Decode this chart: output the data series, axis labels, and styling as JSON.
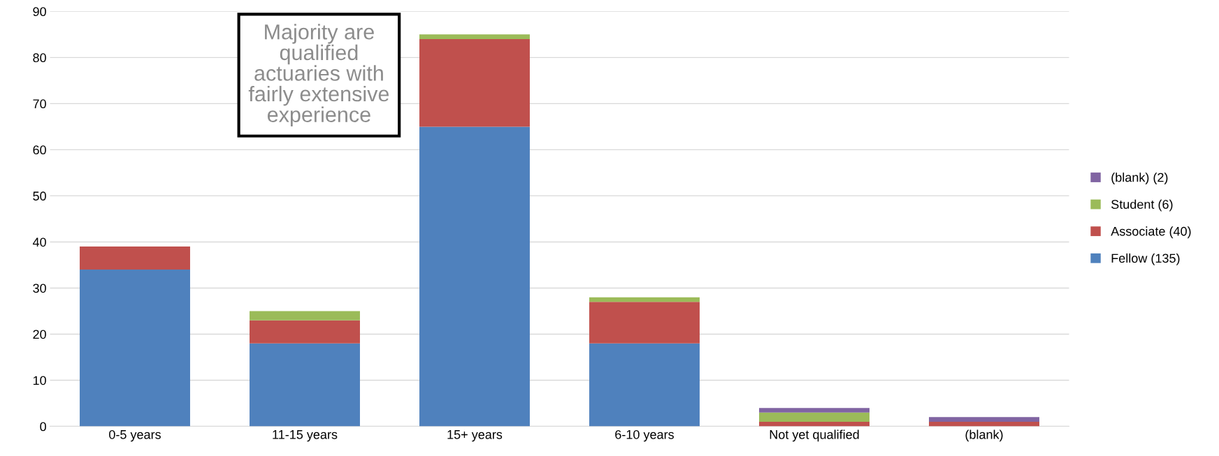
{
  "chart_data": {
    "type": "bar",
    "stacked": true,
    "categories": [
      "0-5 years",
      "11-15 years",
      "15+ years",
      "6-10 years",
      "Not yet qualified",
      "(blank)"
    ],
    "series": [
      {
        "name": "Fellow (135)",
        "color": "#4f81bd",
        "values": [
          34,
          18,
          65,
          18,
          0,
          0
        ]
      },
      {
        "name": "Associate (40)",
        "color": "#c0504d",
        "values": [
          5,
          5,
          19,
          9,
          1,
          1
        ]
      },
      {
        "name": "Student (6)",
        "color": "#9bbb59",
        "values": [
          0,
          2,
          1,
          1,
          2,
          0
        ]
      },
      {
        "name": "(blank) (2)",
        "color": "#8064a2",
        "values": [
          0,
          0,
          0,
          0,
          1,
          1
        ]
      }
    ],
    "ylim": [
      0,
      90
    ],
    "yticks": [
      0,
      10,
      20,
      30,
      40,
      50,
      60,
      70,
      80,
      90
    ],
    "grid": "y",
    "legend": "right",
    "annotations": [
      "Majority are\nqualified\nactuaries with\nfairly extensive\nexperience"
    ]
  }
}
